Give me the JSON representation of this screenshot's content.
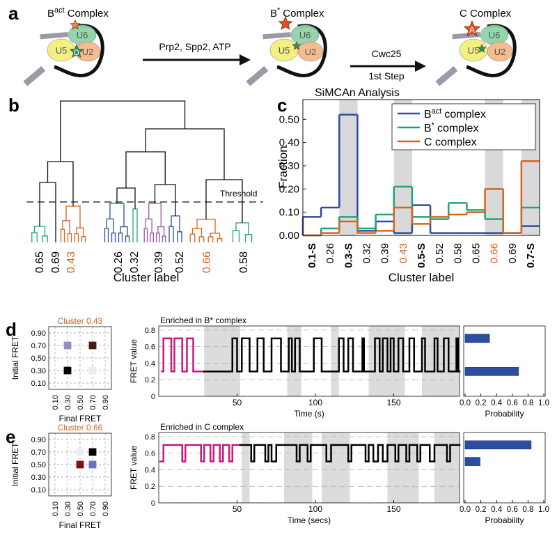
{
  "panel_labels": [
    "a",
    "b",
    "c",
    "d",
    "e"
  ],
  "diagram": {
    "complexes": [
      {
        "name": "B",
        "sup": "act",
        "tail": "Complex"
      },
      {
        "name": "B",
        "sup": "*",
        "tail": "Complex"
      },
      {
        "name": "C Complex"
      }
    ],
    "subunits": [
      "U6",
      "U5",
      "U2"
    ],
    "markers": [
      "D",
      "A"
    ],
    "steps": [
      {
        "lines": [
          "Prp2, Spp2, ATP"
        ]
      },
      {
        "lines": [
          "Cwc25",
          "1st Step"
        ]
      }
    ]
  },
  "chart_data": [
    {
      "type": "dendrogram",
      "categories": [
        "0.65",
        "0.69",
        "0.43",
        "0.26",
        "0.32",
        "0.39",
        "0.52",
        "0.66",
        "0.58"
      ],
      "label_colors": [
        "#000000",
        "#000000",
        "#d9621e",
        "#000000",
        "#000000",
        "#000000",
        "#000000",
        "#d9621e",
        "#000000"
      ],
      "threshold_label": "Threshold",
      "xlabel": "Cluster label"
    },
    {
      "type": "step",
      "title": "SiMCAn Analysis",
      "ylabel": "Fraction",
      "xlabel": "Cluster label",
      "categories": [
        "0.1-S",
        "0.26",
        "0.3-S",
        "0.32",
        "0.39",
        "0.43",
        "0.5-S",
        "0.52",
        "0.58",
        "0.65",
        "0.66",
        "0.69",
        "0.7-S"
      ],
      "category_colors": [
        "#000000",
        "#000000",
        "#000000",
        "#000000",
        "#000000",
        "#d9621e",
        "#000000",
        "#000000",
        "#000000",
        "#000000",
        "#d9621e",
        "#000000",
        "#000000"
      ],
      "bold_categories": [
        "0.1-S",
        "0.3-S",
        "0.5-S",
        "0.7-S"
      ],
      "highlight": [
        "0.3-S",
        "0.43",
        "0.66",
        "0.7-S"
      ],
      "highlight_color": "#d9d9d9",
      "ylim": [
        0,
        0.585
      ],
      "yticks": [
        {
          "value": 0,
          "label": "0.00"
        },
        {
          "value": 0.1,
          "label": "0.10"
        },
        {
          "value": 0.2,
          "label": "0.20"
        },
        {
          "value": 0.3,
          "label": "0.30"
        },
        {
          "value": 0.4,
          "label": "0.40"
        },
        {
          "value": 0.5,
          "label": "0.50"
        }
      ],
      "legend": "upper right",
      "series": [
        {
          "name": "B",
          "name_sup": "act",
          "name_tail": "complex",
          "color": "#2b4ea2",
          "values": [
            0.08,
            0.12,
            0.52,
            0.02,
            0.06,
            0.01,
            0.13,
            0.01,
            0.01,
            0.01,
            0.01,
            0.01,
            0.04
          ]
        },
        {
          "name": "B",
          "name_sup": "*",
          "name_tail": "complex",
          "color": "#1fa37a",
          "values": [
            0.0,
            0.03,
            0.08,
            0.03,
            0.09,
            0.21,
            0.08,
            0.07,
            0.14,
            0.11,
            0.07,
            0.01,
            0.12
          ]
        },
        {
          "name": "C complex",
          "color": "#d9621e",
          "values": [
            0.0,
            0.01,
            0.06,
            0.01,
            0.02,
            0.12,
            0.05,
            0.08,
            0.09,
            0.1,
            0.2,
            0.01,
            0.32
          ]
        }
      ]
    },
    {
      "type": "heatmap",
      "title": "Cluster 0.43",
      "title_color": "#d9621e",
      "xlabel": "Final FRET",
      "ylabel": "Initial FRET",
      "xlim": [
        0,
        1
      ],
      "ylim": [
        0,
        1
      ],
      "grid": true,
      "xticks": [
        {
          "value": 0.1,
          "label": "0.10"
        },
        {
          "value": 0.3,
          "label": "0.30"
        },
        {
          "value": 0.5,
          "label": "0.50"
        },
        {
          "value": 0.7,
          "label": "0.70"
        },
        {
          "value": 0.9,
          "label": "0.90"
        }
      ],
      "yticks": [
        {
          "value": 0.1,
          "label": "0.10"
        },
        {
          "value": 0.3,
          "label": "0.30"
        },
        {
          "value": 0.5,
          "label": "0.50"
        },
        {
          "value": 0.7,
          "label": "0.70"
        },
        {
          "value": 0.9,
          "label": "0.90"
        }
      ],
      "cells": [
        {
          "final": 0.3,
          "initial": 0.7,
          "color": "#8e8ec8"
        },
        {
          "final": 0.7,
          "initial": 0.7,
          "color": "#4a1a10"
        },
        {
          "final": 0.3,
          "initial": 0.3,
          "color": "#000000"
        },
        {
          "final": 0.7,
          "initial": 0.3,
          "color": "#ececf4"
        }
      ]
    },
    {
      "type": "trace",
      "title": "Enriched in B* complex",
      "xlabel": "Time (s)",
      "ylabel": "FRET value",
      "xlim": [
        0,
        192
      ],
      "ylim": [
        0,
        0.85
      ],
      "xticks": [
        50,
        100,
        150
      ],
      "yticks": [
        0,
        0.2,
        0.4,
        0.6,
        0.8
      ],
      "grid": true,
      "shaded": [
        [
          29,
          52
        ],
        [
          82,
          91
        ],
        [
          110,
          115
        ],
        [
          134,
          157
        ],
        [
          168,
          192
        ]
      ],
      "shade_color": "#dcdcdc",
      "series": [
        {
          "color": "#c8177f",
          "x": [
            2,
            3,
            8,
            10,
            15,
            18,
            22
          ],
          "values": [
            0.3,
            0.7,
            0.3,
            0.7,
            0.3,
            0.7,
            0.3
          ]
        },
        {
          "color": "#000000",
          "x": [
            29,
            47,
            50,
            53,
            58,
            63,
            67,
            72,
            78,
            83,
            85,
            87,
            90,
            99,
            104,
            115,
            118,
            121,
            124,
            130,
            131,
            138,
            141,
            143,
            146,
            148,
            150,
            153,
            156,
            160,
            163,
            168,
            170,
            176,
            178,
            182,
            185,
            190,
            191
          ],
          "values": [
            0.3,
            0.7,
            0.3,
            0.7,
            0.3,
            0.7,
            0.3,
            0.7,
            0.3,
            0.7,
            0.3,
            0.7,
            0.3,
            0.7,
            0.3,
            0.7,
            0.3,
            0.7,
            0.3,
            0.7,
            0.3,
            0.7,
            0.3,
            0.7,
            0.3,
            0.7,
            0.3,
            0.7,
            0.3,
            0.7,
            0.3,
            0.7,
            0.3,
            0.7,
            0.3,
            0.7,
            0.3,
            0.7,
            0.3
          ]
        }
      ]
    },
    {
      "type": "hbar",
      "xlabel": "Probability",
      "xlim": [
        0,
        1
      ],
      "ylim": [
        0,
        0.85
      ],
      "xticks": [
        {
          "value": 0,
          "label": "0.0"
        },
        0.2,
        0.4,
        0.6,
        0.8,
        {
          "value": 1,
          "label": "1.0"
        }
      ],
      "states": [
        0.7,
        0.3
      ],
      "values": [
        0.31,
        0.68
      ],
      "color": "#2b4ea2"
    },
    {
      "type": "heatmap",
      "title": "Cluster 0.66",
      "title_color": "#d9621e",
      "xlabel": "Final FRET",
      "ylabel": "Initial FRET",
      "xlim": [
        0,
        1
      ],
      "ylim": [
        0,
        1
      ],
      "grid": true,
      "xticks": [
        {
          "value": 0.1,
          "label": "0.10"
        },
        {
          "value": 0.3,
          "label": "0.30"
        },
        {
          "value": 0.5,
          "label": "0.50"
        },
        {
          "value": 0.7,
          "label": "0.70"
        },
        {
          "value": 0.9,
          "label": "0.90"
        }
      ],
      "yticks": [
        {
          "value": 0.1,
          "label": "0.10"
        },
        {
          "value": 0.3,
          "label": "0.30"
        },
        {
          "value": 0.5,
          "label": "0.50"
        },
        {
          "value": 0.7,
          "label": "0.70"
        },
        {
          "value": 0.9,
          "label": "0.90"
        }
      ],
      "cells": [
        {
          "final": 0.7,
          "initial": 0.7,
          "color": "#000000"
        },
        {
          "final": 0.5,
          "initial": 0.5,
          "color": "#7a1410"
        },
        {
          "final": 0.7,
          "initial": 0.5,
          "color": "#6b6fc0"
        },
        {
          "final": 0.5,
          "initial": 0.7,
          "color": "#ececf4"
        }
      ]
    },
    {
      "type": "trace",
      "title": "Enriched in C complex",
      "xlabel": "Time (secs)",
      "ylabel": "FRET value",
      "xlim": [
        0,
        192
      ],
      "ylim": [
        0,
        0.85
      ],
      "xticks": [
        50,
        100,
        150
      ],
      "yticks": [
        0,
        0.2,
        0.4,
        0.6,
        0.8
      ],
      "grid": true,
      "shaded": [
        [
          53,
          58
        ],
        [
          80,
          98
        ],
        [
          104,
          122
        ],
        [
          146,
          166
        ],
        [
          176,
          192
        ]
      ],
      "shade_color": "#dcdcdc",
      "series": [
        {
          "color": "#c8177f",
          "x": [
            1,
            3,
            15,
            17,
            27,
            29,
            33,
            35,
            39,
            41,
            45,
            47
          ],
          "values": [
            0.5,
            0.7,
            0.5,
            0.7,
            0.5,
            0.7,
            0.5,
            0.7,
            0.5,
            0.7,
            0.5,
            0.7
          ]
        },
        {
          "color": "#000000",
          "x": [
            52,
            59,
            61,
            68,
            70,
            72,
            75,
            88,
            90,
            95,
            97,
            107,
            110,
            121,
            123,
            132,
            134,
            137,
            140,
            143,
            146,
            151,
            153,
            158,
            160,
            165,
            167,
            173,
            176,
            184,
            186
          ],
          "values": [
            0.7,
            0.5,
            0.7,
            0.5,
            0.7,
            0.5,
            0.7,
            0.5,
            0.7,
            0.5,
            0.7,
            0.5,
            0.7,
            0.5,
            0.7,
            0.5,
            0.7,
            0.5,
            0.7,
            0.5,
            0.7,
            0.5,
            0.7,
            0.5,
            0.7,
            0.5,
            0.7,
            0.5,
            0.7,
            0.5,
            0.7
          ]
        }
      ]
    },
    {
      "type": "hbar",
      "xlabel": "Probability",
      "xlim": [
        0,
        1
      ],
      "ylim": [
        0,
        0.85
      ],
      "xticks": [
        {
          "value": 0,
          "label": "0.0"
        },
        0.2,
        0.4,
        0.6,
        0.8,
        {
          "value": 1,
          "label": "1.0"
        }
      ],
      "states": [
        0.7,
        0.5
      ],
      "values": [
        0.84,
        0.19
      ],
      "color": "#2b4ea2"
    }
  ]
}
